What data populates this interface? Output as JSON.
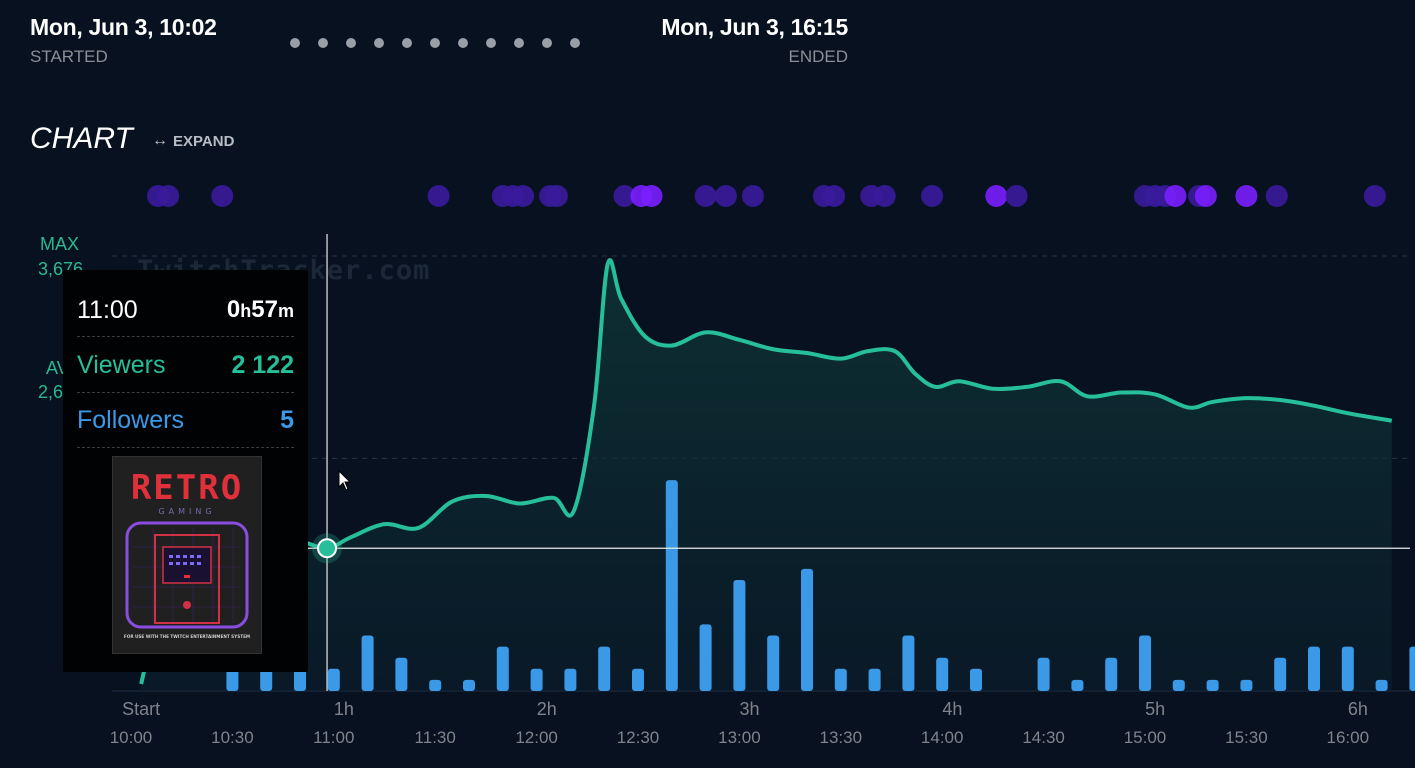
{
  "header": {
    "started_time": "Mon, Jun 3, 10:02",
    "started_label": "STARTED",
    "ended_time": "Mon, Jun 3, 16:15",
    "ended_label": "ENDED"
  },
  "section": {
    "title": "CHART",
    "expand_label": "EXPAND"
  },
  "watermark": "TwitchTracker.com",
  "axis_labels": {
    "max_label": "MAX",
    "max_value": "3,676",
    "avg_label": "AVG",
    "avg_value": "2,6"
  },
  "tooltip": {
    "time": "11:00",
    "duration_hours": "0",
    "duration_h_unit": "h",
    "duration_minutes": "57",
    "duration_m_unit": "m",
    "viewers_label": "Viewers",
    "viewers_value": "2 122",
    "followers_label": "Followers",
    "followers_value": "5",
    "cover_title": "RETRO",
    "cover_subtitle": "GAMING",
    "cover_footer": "FOR USE WITH THE TWITCH ENTERTAINMENT SYSTEM"
  },
  "colors": {
    "background": "#07111f",
    "viewers_line": "#26bf9a",
    "followers_bar": "#3a9ae8",
    "event_dot_dark": "#3a1b9c",
    "event_dot_bright": "#7a1fff"
  },
  "chart_data": {
    "type": "line+bar",
    "x_unit": "minutes since stream start",
    "x_range": [
      0,
      373
    ],
    "top_ticks": [
      {
        "x": 3,
        "label": "Start"
      },
      {
        "x": 63,
        "label": "1h"
      },
      {
        "x": 123,
        "label": "2h"
      },
      {
        "x": 183,
        "label": "3h"
      },
      {
        "x": 243,
        "label": "4h"
      },
      {
        "x": 303,
        "label": "5h"
      },
      {
        "x": 363,
        "label": "6h"
      }
    ],
    "bottom_ticks": [
      {
        "x": 0,
        "label": "10:00"
      },
      {
        "x": 30,
        "label": "10:30"
      },
      {
        "x": 60,
        "label": "11:00"
      },
      {
        "x": 90,
        "label": "11:30"
      },
      {
        "x": 120,
        "label": "12:00"
      },
      {
        "x": 150,
        "label": "12:30"
      },
      {
        "x": 180,
        "label": "13:00"
      },
      {
        "x": 210,
        "label": "13:30"
      },
      {
        "x": 240,
        "label": "14:00"
      },
      {
        "x": 270,
        "label": "14:30"
      },
      {
        "x": 300,
        "label": "15:00"
      },
      {
        "x": 330,
        "label": "15:30"
      },
      {
        "x": 360,
        "label": "16:00"
      }
    ],
    "viewers": {
      "name": "Viewers",
      "ylim": [
        1400,
        3676
      ],
      "reference_lines": {
        "max": 3676,
        "avg": 2600
      },
      "points": [
        [
          3,
          1400
        ],
        [
          10,
          1900
        ],
        [
          20,
          2150
        ],
        [
          30,
          2200
        ],
        [
          40,
          2190
        ],
        [
          50,
          2160
        ],
        [
          58,
          2122
        ],
        [
          65,
          2180
        ],
        [
          75,
          2250
        ],
        [
          85,
          2230
        ],
        [
          95,
          2370
        ],
        [
          105,
          2400
        ],
        [
          115,
          2360
        ],
        [
          125,
          2390
        ],
        [
          131,
          2320
        ],
        [
          137,
          2880
        ],
        [
          141,
          3630
        ],
        [
          145,
          3450
        ],
        [
          152,
          3250
        ],
        [
          160,
          3200
        ],
        [
          170,
          3270
        ],
        [
          180,
          3230
        ],
        [
          190,
          3180
        ],
        [
          200,
          3160
        ],
        [
          210,
          3130
        ],
        [
          218,
          3170
        ],
        [
          226,
          3170
        ],
        [
          232,
          3050
        ],
        [
          238,
          2980
        ],
        [
          245,
          3010
        ],
        [
          255,
          2970
        ],
        [
          265,
          2980
        ],
        [
          275,
          3010
        ],
        [
          283,
          2930
        ],
        [
          293,
          2950
        ],
        [
          303,
          2940
        ],
        [
          313,
          2870
        ],
        [
          320,
          2900
        ],
        [
          330,
          2920
        ],
        [
          340,
          2910
        ],
        [
          350,
          2880
        ],
        [
          360,
          2840
        ],
        [
          373,
          2800
        ]
      ]
    },
    "followers": {
      "name": "Followers",
      "ylim": [
        0,
        20
      ],
      "bars": [
        [
          30,
          2
        ],
        [
          40,
          2
        ],
        [
          50,
          2
        ],
        [
          60,
          2
        ],
        [
          70,
          5
        ],
        [
          80,
          3
        ],
        [
          90,
          1
        ],
        [
          100,
          1
        ],
        [
          110,
          4
        ],
        [
          120,
          2
        ],
        [
          130,
          2
        ],
        [
          140,
          4
        ],
        [
          150,
          2
        ],
        [
          160,
          19
        ],
        [
          170,
          6
        ],
        [
          180,
          10
        ],
        [
          190,
          5
        ],
        [
          200,
          11
        ],
        [
          210,
          2
        ],
        [
          220,
          2
        ],
        [
          230,
          5
        ],
        [
          240,
          3
        ],
        [
          250,
          2
        ],
        [
          260,
          0
        ],
        [
          270,
          3
        ],
        [
          280,
          1
        ],
        [
          290,
          3
        ],
        [
          300,
          5
        ],
        [
          310,
          1
        ],
        [
          320,
          1
        ],
        [
          330,
          1
        ],
        [
          340,
          3
        ],
        [
          350,
          4
        ],
        [
          360,
          4
        ],
        [
          370,
          1
        ],
        [
          380,
          4
        ]
      ]
    },
    "events": [
      {
        "x": 8,
        "bright": false
      },
      {
        "x": 11,
        "bright": false
      },
      {
        "x": 27,
        "bright": false
      },
      {
        "x": 91,
        "bright": false
      },
      {
        "x": 110,
        "bright": false
      },
      {
        "x": 113,
        "bright": false
      },
      {
        "x": 116,
        "bright": false
      },
      {
        "x": 124,
        "bright": false
      },
      {
        "x": 126,
        "bright": false
      },
      {
        "x": 146,
        "bright": false
      },
      {
        "x": 151,
        "bright": true
      },
      {
        "x": 154,
        "bright": true
      },
      {
        "x": 170,
        "bright": false
      },
      {
        "x": 176,
        "bright": false
      },
      {
        "x": 184,
        "bright": false
      },
      {
        "x": 205,
        "bright": false
      },
      {
        "x": 208,
        "bright": false
      },
      {
        "x": 219,
        "bright": false
      },
      {
        "x": 223,
        "bright": false
      },
      {
        "x": 237,
        "bright": false
      },
      {
        "x": 256,
        "bright": true
      },
      {
        "x": 262,
        "bright": false
      },
      {
        "x": 300,
        "bright": false
      },
      {
        "x": 303,
        "bright": false
      },
      {
        "x": 306,
        "bright": false
      },
      {
        "x": 309,
        "bright": true
      },
      {
        "x": 316,
        "bright": false
      },
      {
        "x": 318,
        "bright": true
      },
      {
        "x": 330,
        "bright": true
      },
      {
        "x": 339,
        "bright": false
      },
      {
        "x": 368,
        "bright": false
      }
    ],
    "hover": {
      "x": 58,
      "time": "11:00",
      "viewers": 2122,
      "followers": 5
    }
  }
}
